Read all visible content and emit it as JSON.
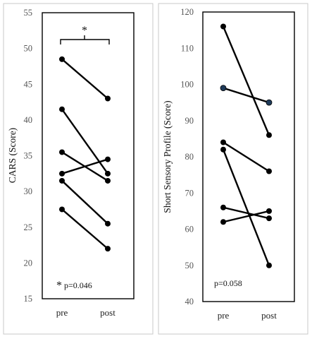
{
  "chart_data": [
    {
      "type": "line",
      "ylabel": "CARS (Score)",
      "categories": [
        "pre",
        "post"
      ],
      "ylim": [
        15,
        55
      ],
      "yticks": [
        15,
        20,
        25,
        30,
        35,
        40,
        45,
        50,
        55
      ],
      "series": [
        {
          "values": [
            48.5,
            43.0
          ]
        },
        {
          "values": [
            41.5,
            32.5
          ]
        },
        {
          "values": [
            35.5,
            31.5
          ]
        },
        {
          "values": [
            32.5,
            34.5
          ]
        },
        {
          "values": [
            31.5,
            25.5
          ]
        },
        {
          "values": [
            27.5,
            22.0
          ]
        }
      ],
      "significance_star": "*",
      "annotation": {
        "star": "*",
        "text": "p=0.046"
      },
      "grid": false
    },
    {
      "type": "line",
      "ylabel": "Short Sensory Profile (Score)",
      "categories": [
        "pre",
        "post"
      ],
      "ylim": [
        40,
        120
      ],
      "yticks": [
        40,
        50,
        60,
        70,
        80,
        90,
        100,
        110,
        120
      ],
      "series": [
        {
          "values": [
            116,
            86
          ]
        },
        {
          "values": [
            99,
            95
          ],
          "marker_color": "#1f3b5a"
        },
        {
          "values": [
            84,
            76
          ]
        },
        {
          "values": [
            82,
            50
          ]
        },
        {
          "values": [
            66,
            63
          ]
        },
        {
          "values": [
            62,
            65
          ]
        }
      ],
      "annotation": {
        "star": "",
        "text": "p=0.058"
      },
      "grid": false
    }
  ]
}
